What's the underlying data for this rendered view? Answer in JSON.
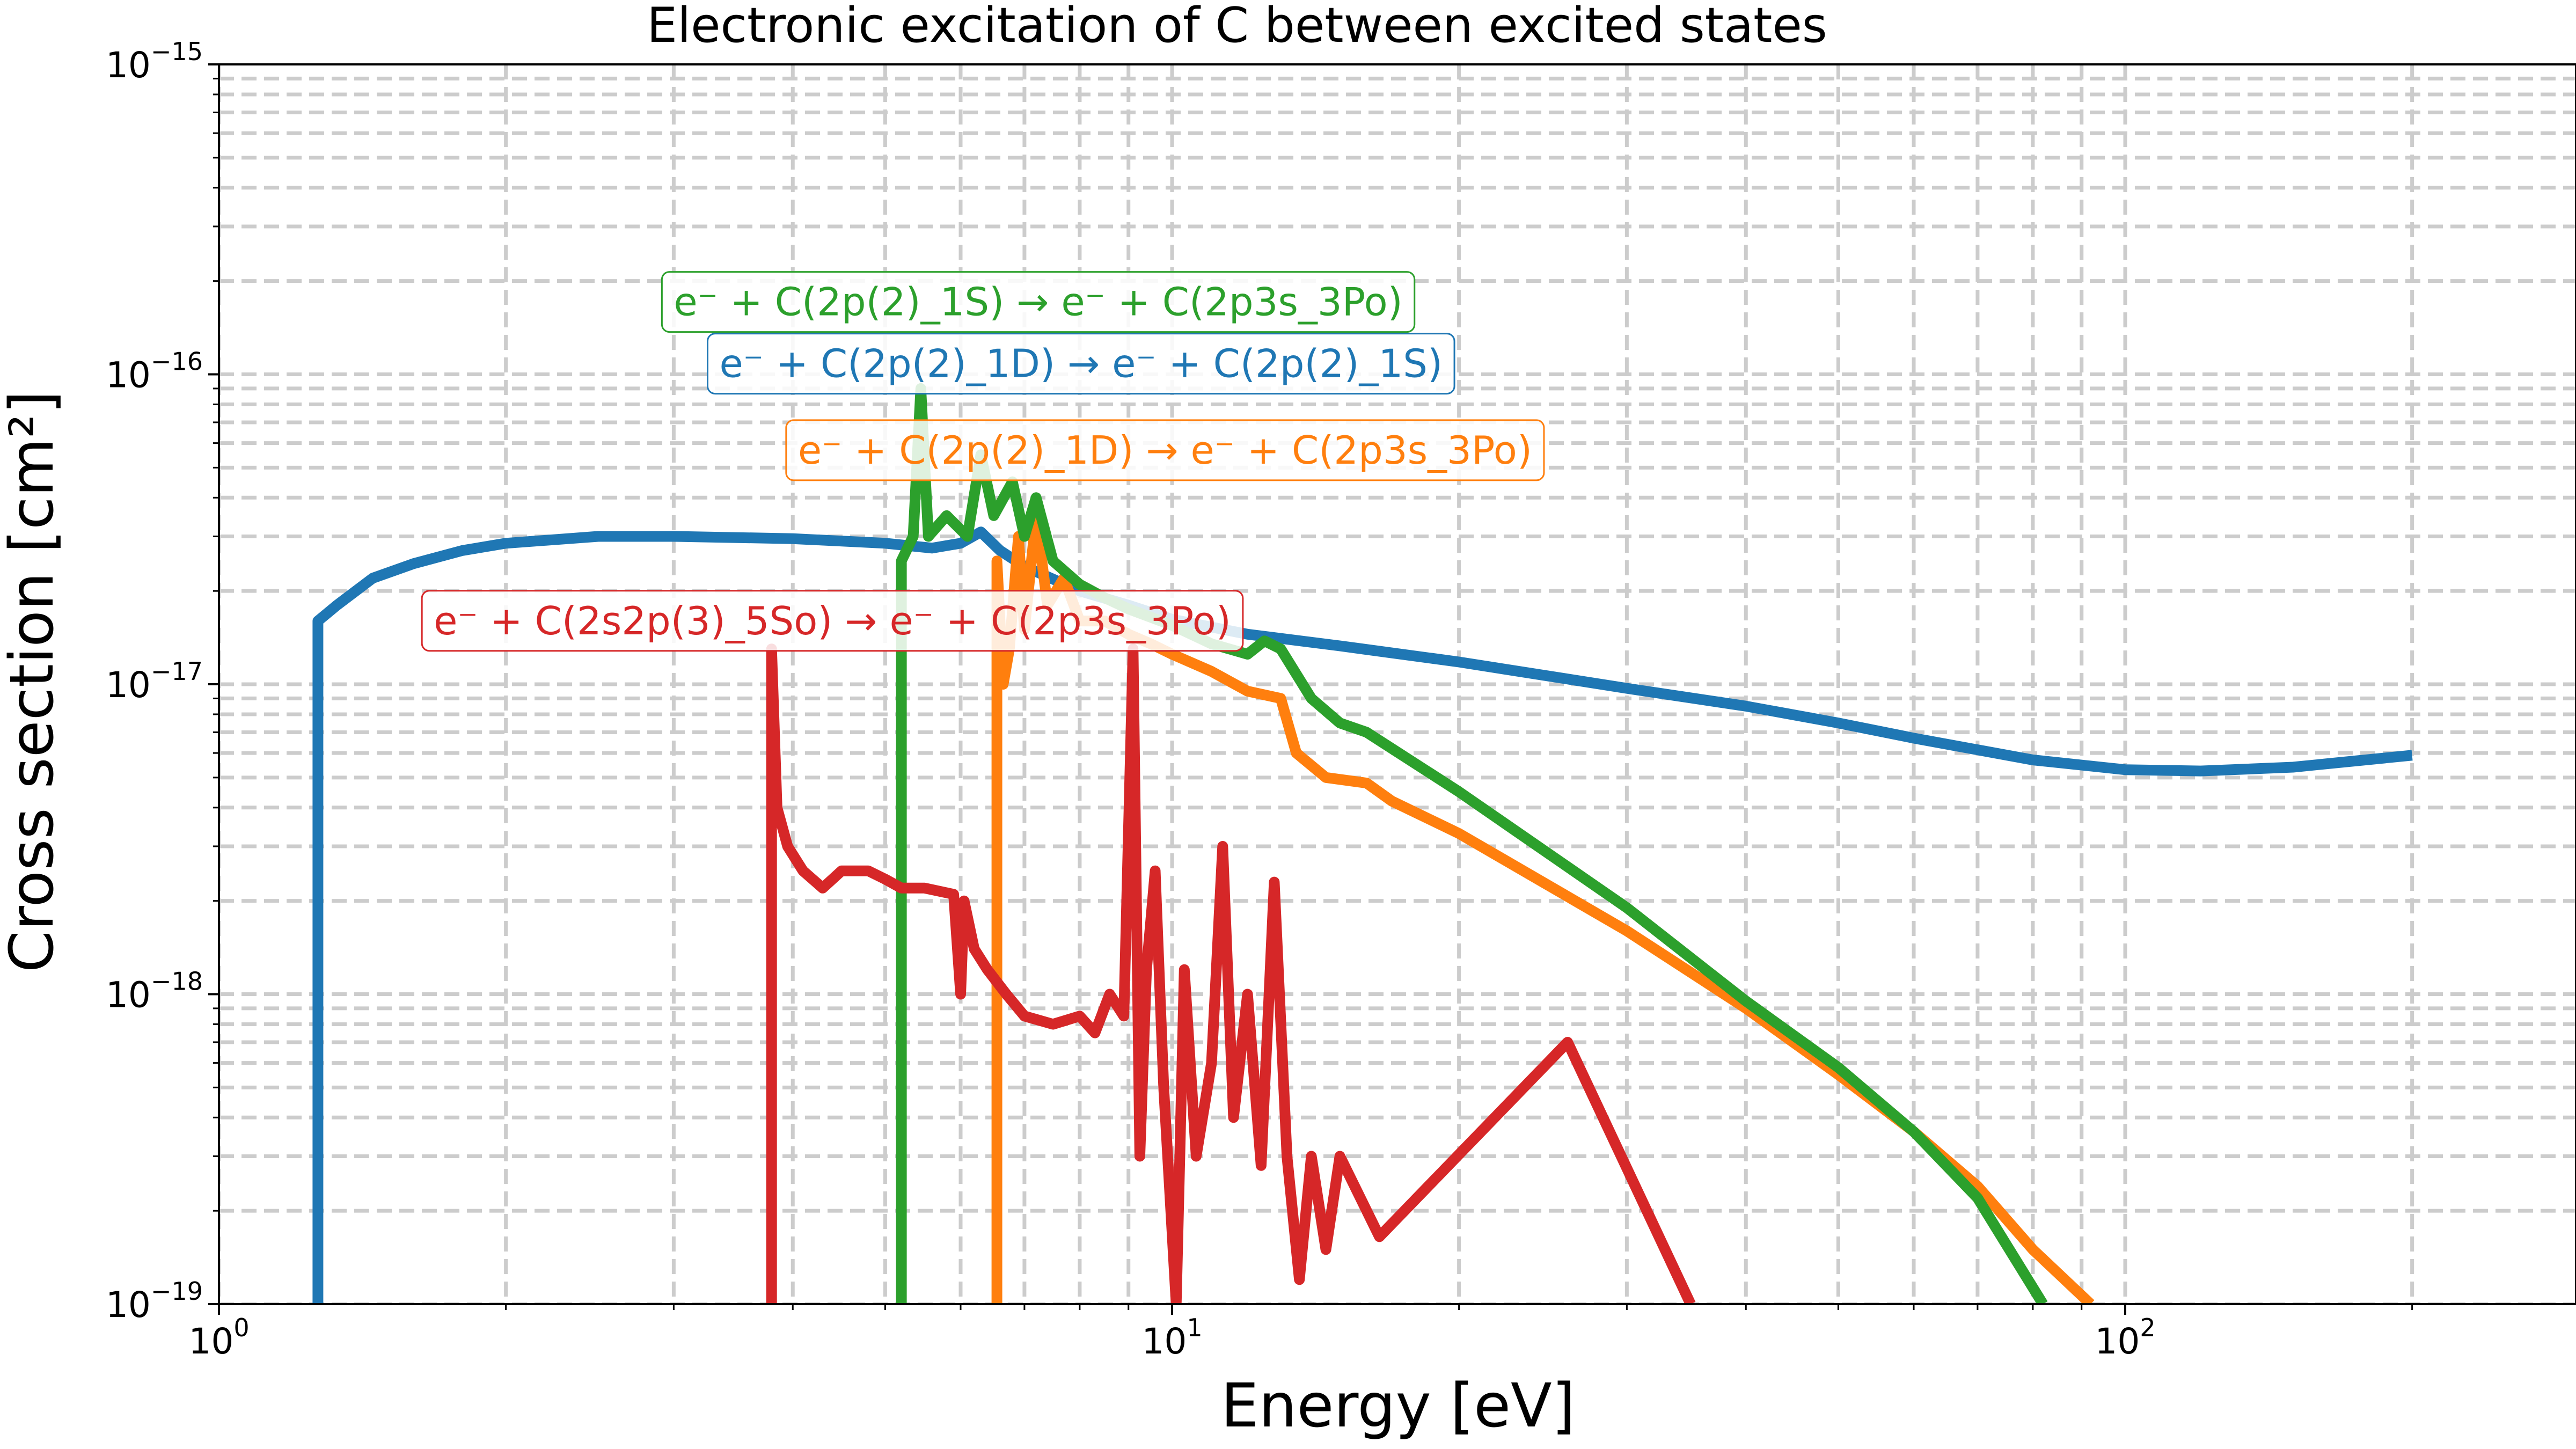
{
  "chart_data": {
    "type": "line",
    "title": "Electronic excitation of C between excited states",
    "xlabel": "Energy [eV]",
    "ylabel": "Cross section [cm²]",
    "xscale": "log",
    "yscale": "log",
    "xlim": [
      1,
      300
    ],
    "ylim": [
      1e-19,
      1e-15
    ],
    "grid": true,
    "x_ticks": [
      {
        "value": 1,
        "base": "10",
        "exp": "0"
      },
      {
        "value": 10,
        "base": "10",
        "exp": "1"
      },
      {
        "value": 100,
        "base": "10",
        "exp": "2"
      }
    ],
    "y_ticks": [
      {
        "value": 1e-19,
        "base": "10",
        "exp": "−19"
      },
      {
        "value": 1e-18,
        "base": "10",
        "exp": "−18"
      },
      {
        "value": 1e-17,
        "base": "10",
        "exp": "−17"
      },
      {
        "value": 1e-16,
        "base": "10",
        "exp": "−16"
      },
      {
        "value": 1e-15,
        "base": "10",
        "exp": "−15"
      }
    ],
    "series": [
      {
        "name": "e⁻ + C(2p(2)_1D) → e⁻ + C(2p(2)_1S)",
        "color": "#1f77b4",
        "points": [
          [
            1.27,
            1e-19
          ],
          [
            1.27,
            1.6e-17
          ],
          [
            1.33,
            1.8e-17
          ],
          [
            1.45,
            2.2e-17
          ],
          [
            1.6,
            2.45e-17
          ],
          [
            1.8,
            2.7e-17
          ],
          [
            2.0,
            2.85e-17
          ],
          [
            2.5,
            3e-17
          ],
          [
            3.0,
            3e-17
          ],
          [
            4.0,
            2.95e-17
          ],
          [
            5.0,
            2.85e-17
          ],
          [
            5.6,
            2.75e-17
          ],
          [
            6.0,
            2.85e-17
          ],
          [
            6.3,
            3.1e-17
          ],
          [
            6.6,
            2.7e-17
          ],
          [
            7.0,
            2.4e-17
          ],
          [
            8.0,
            2e-17
          ],
          [
            9.0,
            1.8e-17
          ],
          [
            10.0,
            1.62e-17
          ],
          [
            12.0,
            1.45e-17
          ],
          [
            15.0,
            1.33e-17
          ],
          [
            20.0,
            1.18e-17
          ],
          [
            30.0,
            9.7e-18
          ],
          [
            40.0,
            8.5e-18
          ],
          [
            50.0,
            7.5e-18
          ],
          [
            60.0,
            6.7e-18
          ],
          [
            80.0,
            5.7e-18
          ],
          [
            100.0,
            5.3e-18
          ],
          [
            120.0,
            5.25e-18
          ],
          [
            150.0,
            5.4e-18
          ],
          [
            200.0,
            5.9e-18
          ]
        ]
      },
      {
        "name": "e⁻ + C(2p(2)_1D) → e⁻ + C(2p3s_3Po)",
        "color": "#ff7f0e",
        "points": [
          [
            6.55,
            1e-19
          ],
          [
            6.55,
            2.5e-17
          ],
          [
            6.65,
            1e-17
          ],
          [
            6.75,
            1.3e-17
          ],
          [
            6.9,
            3e-17
          ],
          [
            7.0,
            1.5e-17
          ],
          [
            7.2,
            3.5e-17
          ],
          [
            7.4,
            1.8e-17
          ],
          [
            7.7,
            2.2e-17
          ],
          [
            8.0,
            1.6e-17
          ],
          [
            8.5,
            1.6e-17
          ],
          [
            9.0,
            1.45e-17
          ],
          [
            9.5,
            1.35e-17
          ],
          [
            10.0,
            1.25e-17
          ],
          [
            11.0,
            1.1e-17
          ],
          [
            12.0,
            9.5e-18
          ],
          [
            13.0,
            9e-18
          ],
          [
            13.5,
            6e-18
          ],
          [
            14.5,
            5e-18
          ],
          [
            16.0,
            4.8e-18
          ],
          [
            17.0,
            4.2e-18
          ],
          [
            20.0,
            3.3e-18
          ],
          [
            30.0,
            1.6e-18
          ],
          [
            40.0,
            9e-19
          ],
          [
            50.0,
            5.5e-19
          ],
          [
            60.0,
            3.6e-19
          ],
          [
            70.0,
            2.4e-19
          ],
          [
            80.0,
            1.5e-19
          ],
          [
            92.0,
            1e-19
          ]
        ]
      },
      {
        "name": "e⁻ + C(2p(2)_1S) → e⁻ + C(2p3s_3Po)",
        "color": "#2ca02c",
        "points": [
          [
            5.2,
            1e-19
          ],
          [
            5.2,
            2.5e-17
          ],
          [
            5.35,
            3e-17
          ],
          [
            5.45,
            9e-17
          ],
          [
            5.55,
            3e-17
          ],
          [
            5.8,
            3.5e-17
          ],
          [
            6.1,
            3e-17
          ],
          [
            6.3,
            5.5e-17
          ],
          [
            6.5,
            3.5e-17
          ],
          [
            6.8,
            4.5e-17
          ],
          [
            7.0,
            3e-17
          ],
          [
            7.2,
            4e-17
          ],
          [
            7.5,
            2.5e-17
          ],
          [
            8.0,
            2.1e-17
          ],
          [
            8.5,
            1.9e-17
          ],
          [
            9.0,
            1.75e-17
          ],
          [
            10.0,
            1.55e-17
          ],
          [
            11.0,
            1.35e-17
          ],
          [
            12.0,
            1.25e-17
          ],
          [
            12.5,
            1.38e-17
          ],
          [
            13.0,
            1.3e-17
          ],
          [
            14.0,
            9e-18
          ],
          [
            15.0,
            7.5e-18
          ],
          [
            16.0,
            7e-18
          ],
          [
            20.0,
            4.5e-18
          ],
          [
            30.0,
            1.9e-18
          ],
          [
            40.0,
            9.5e-19
          ],
          [
            50.0,
            5.8e-19
          ],
          [
            60.0,
            3.6e-19
          ],
          [
            70.0,
            2.2e-19
          ],
          [
            82.0,
            1e-19
          ]
        ]
      },
      {
        "name": "e⁻ + C(2s2p(3)_5So) → e⁻ + C(2p3s_3Po)",
        "color": "#d62728",
        "points": [
          [
            3.8,
            1e-19
          ],
          [
            3.8,
            1.3e-17
          ],
          [
            3.85,
            4e-18
          ],
          [
            3.95,
            3e-18
          ],
          [
            4.1,
            2.5e-18
          ],
          [
            4.3,
            2.2e-18
          ],
          [
            4.5,
            2.5e-18
          ],
          [
            4.8,
            2.5e-18
          ],
          [
            5.0,
            2.35e-18
          ],
          [
            5.2,
            2.2e-18
          ],
          [
            5.5,
            2.2e-18
          ],
          [
            5.9,
            2.1e-18
          ],
          [
            6.0,
            1e-18
          ],
          [
            6.05,
            2e-18
          ],
          [
            6.2,
            1.4e-18
          ],
          [
            6.4,
            1.2e-18
          ],
          [
            6.7,
            1e-18
          ],
          [
            7.0,
            8.5e-19
          ],
          [
            7.5,
            8e-19
          ],
          [
            8.0,
            8.5e-19
          ],
          [
            8.3,
            7.5e-19
          ],
          [
            8.6,
            1e-18
          ],
          [
            8.9,
            8.5e-19
          ],
          [
            9.1,
            1.3e-17
          ],
          [
            9.25,
            3e-19
          ],
          [
            9.4,
            1.2e-18
          ],
          [
            9.6,
            2.5e-18
          ],
          [
            9.8,
            5e-19
          ],
          [
            10.1,
            1e-19
          ],
          [
            10.3,
            1.2e-18
          ],
          [
            10.6,
            3e-19
          ],
          [
            11.0,
            6e-19
          ],
          [
            11.3,
            3e-18
          ],
          [
            11.6,
            4e-19
          ],
          [
            12.0,
            1e-18
          ],
          [
            12.4,
            2.8e-19
          ],
          [
            12.8,
            2.3e-18
          ],
          [
            13.2,
            3e-19
          ],
          [
            13.6,
            1.2e-19
          ],
          [
            14.0,
            3e-19
          ],
          [
            14.5,
            1.5e-19
          ],
          [
            15.0,
            3e-19
          ],
          [
            16.5,
            1.65e-19
          ],
          [
            26.0,
            7e-19
          ],
          [
            35.0,
            1e-19
          ]
        ]
      }
    ],
    "annotations": [
      {
        "text": "e⁻ + C(2p(2)_1S) → e⁻ + C(2p3s_3Po)",
        "color": "#2ca02c"
      },
      {
        "text": "e⁻ + C(2p(2)_1D) → e⁻ + C(2p(2)_1S)",
        "color": "#1f77b4"
      },
      {
        "text": "e⁻ + C(2p(2)_1D) → e⁻ + C(2p3s_3Po)",
        "color": "#ff7f0e"
      },
      {
        "text": "e⁻ + C(2s2p(3)_5So) → e⁻ + C(2p3s_3Po)",
        "color": "#d62728"
      }
    ]
  }
}
